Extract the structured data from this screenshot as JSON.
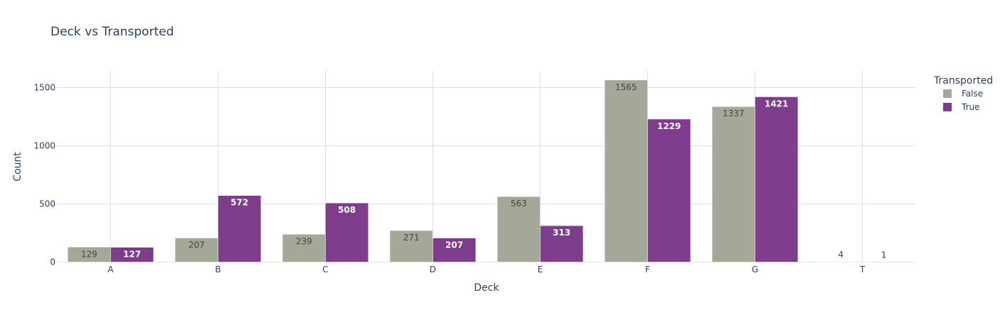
{
  "chart_data": {
    "type": "bar",
    "title": "Deck vs Transported",
    "xlabel": "Deck",
    "ylabel": "Count",
    "categories": [
      "A",
      "B",
      "C",
      "D",
      "E",
      "F",
      "G",
      "T"
    ],
    "series": [
      {
        "name": "False",
        "values": [
          129,
          207,
          239,
          271,
          563,
          1565,
          1337,
          4
        ],
        "color": "#a4a898"
      },
      {
        "name": "True",
        "values": [
          127,
          572,
          508,
          207,
          313,
          1229,
          1421,
          1
        ],
        "color": "#7d3c8c"
      }
    ],
    "yticks": [
      0,
      500,
      1000,
      1500
    ],
    "ylim": [
      0,
      1650
    ],
    "grid": true,
    "legend": {
      "title": "Transported",
      "position": "top-right"
    }
  }
}
